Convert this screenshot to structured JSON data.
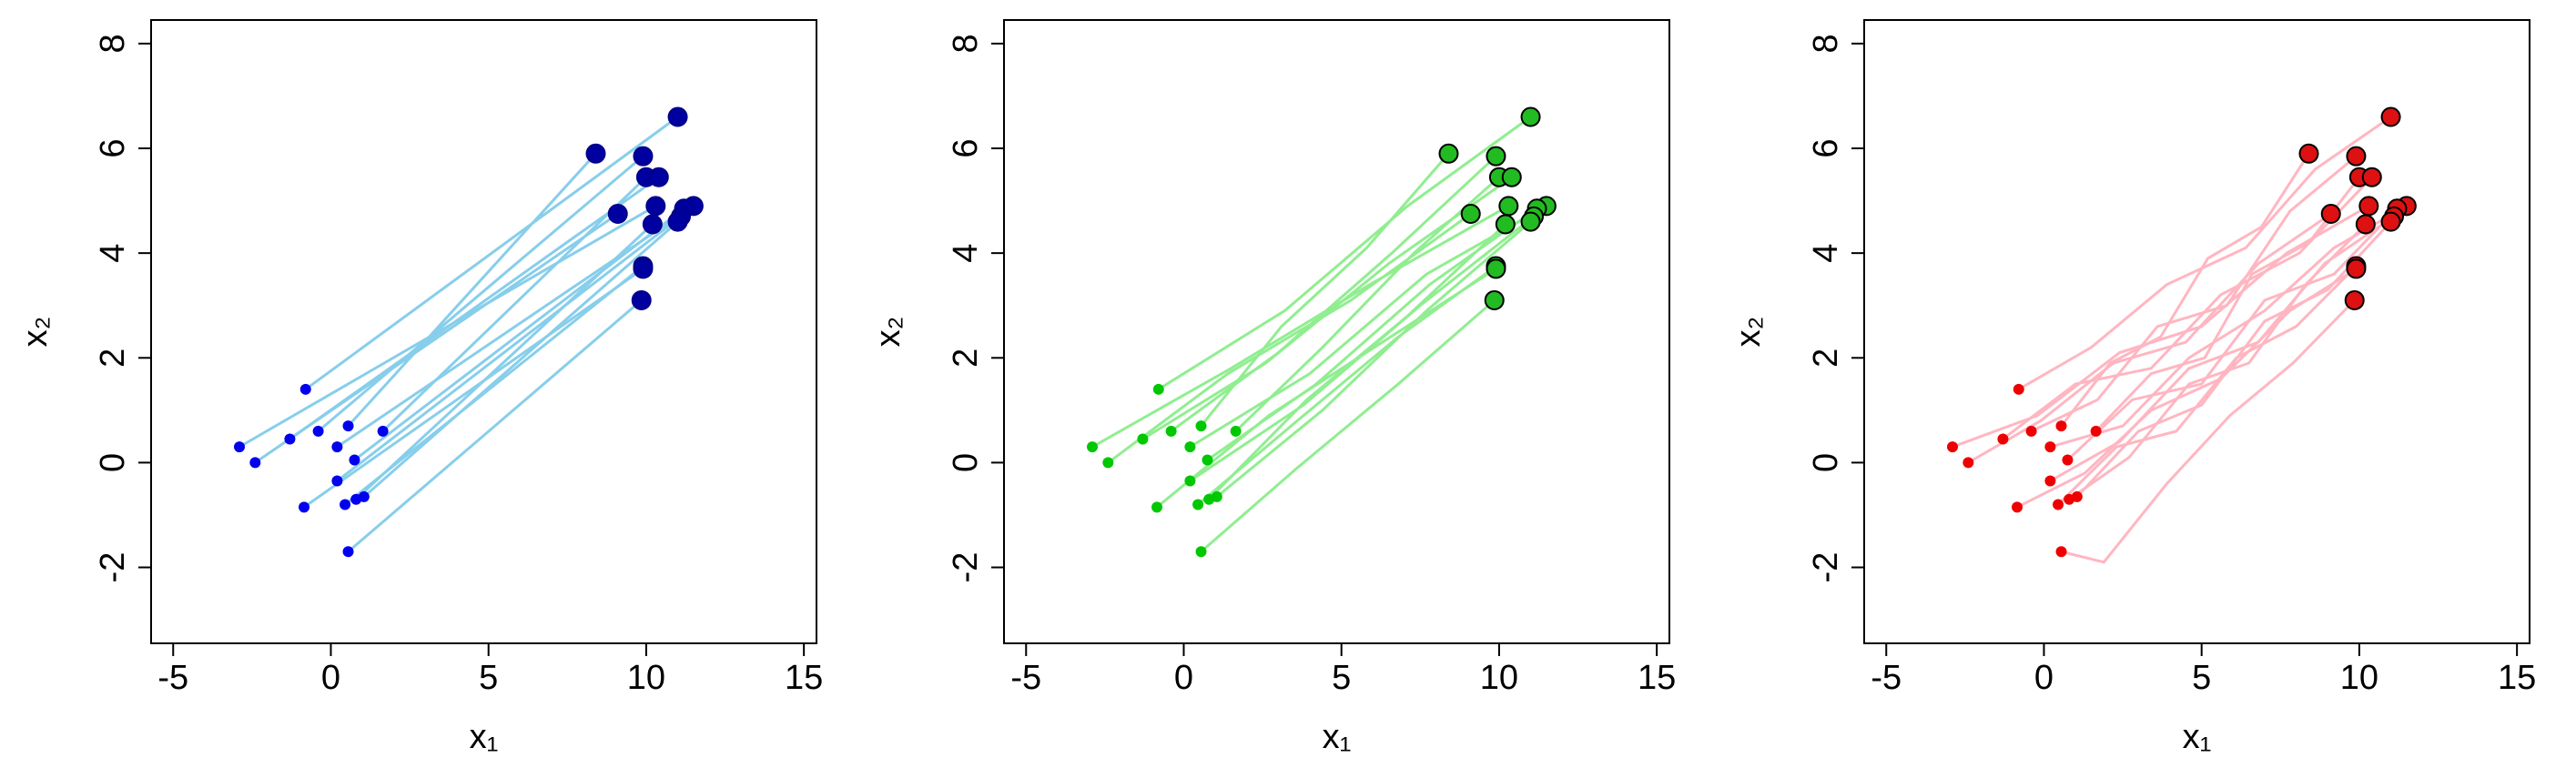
{
  "chart_data": [
    {
      "type": "trajectory",
      "xlabel": "x₁",
      "ylabel": "x₂",
      "xlim": [
        -5.7,
        15.4
      ],
      "ylim": [
        -3.45,
        8.45
      ],
      "xticks": [
        -5,
        0,
        5,
        10,
        15
      ],
      "yticks": [
        -2,
        0,
        2,
        4,
        6,
        8
      ],
      "line_color": "#87ceeb",
      "start_color": "#0000ee",
      "end_color": "#0000a0",
      "end_stroke": "#00008b",
      "paths": [
        {
          "x": [
            -0.8,
            11.0
          ],
          "y": [
            1.4,
            6.6
          ]
        },
        {
          "x": [
            0.55,
            8.4
          ],
          "y": [
            0.7,
            5.9
          ]
        },
        {
          "x": [
            -0.4,
            9.9
          ],
          "y": [
            0.6,
            5.85
          ]
        },
        {
          "x": [
            1.65,
            10.0
          ],
          "y": [
            0.6,
            5.45
          ]
        },
        {
          "x": [
            -1.3,
            10.4
          ],
          "y": [
            0.45,
            5.45
          ]
        },
        {
          "x": [
            -2.9,
            10.3
          ],
          "y": [
            0.3,
            4.9
          ]
        },
        {
          "x": [
            0.2,
            11.5
          ],
          "y": [
            0.3,
            4.9
          ]
        },
        {
          "x": [
            0.75,
            11.2
          ],
          "y": [
            0.05,
            4.85
          ]
        },
        {
          "x": [
            -2.4,
            9.1
          ],
          "y": [
            0.0,
            4.75
          ]
        },
        {
          "x": [
            0.2,
            11.1
          ],
          "y": [
            -0.35,
            4.7
          ]
        },
        {
          "x": [
            1.05,
            11.0
          ],
          "y": [
            -0.65,
            4.6
          ]
        },
        {
          "x": [
            0.8,
            10.2
          ],
          "y": [
            -0.7,
            4.55
          ]
        },
        {
          "x": [
            0.45,
            9.9
          ],
          "y": [
            -0.8,
            3.75
          ]
        },
        {
          "x": [
            -0.85,
            9.9
          ],
          "y": [
            -0.85,
            3.7
          ]
        },
        {
          "x": [
            0.55,
            9.85
          ],
          "y": [
            -1.7,
            3.1
          ]
        }
      ]
    },
    {
      "type": "trajectory",
      "xlabel": "x₁",
      "ylabel": "x₂",
      "xlim": [
        -5.7,
        15.4
      ],
      "ylim": [
        -3.45,
        8.45
      ],
      "xticks": [
        -5,
        0,
        5,
        10,
        15
      ],
      "yticks": [
        -2,
        0,
        2,
        4,
        6,
        8
      ],
      "line_color": "#90ee90",
      "start_color": "#00c800",
      "end_color": "#22bb22",
      "end_stroke": "#000000",
      "paths": [
        {
          "x": [
            -0.8,
            3.2,
            7.1,
            11.0
          ],
          "y": [
            1.4,
            2.9,
            4.9,
            6.6
          ]
        },
        {
          "x": [
            0.55,
            3.1,
            5.8,
            8.4
          ],
          "y": [
            0.7,
            2.6,
            4.1,
            5.9
          ]
        },
        {
          "x": [
            -0.4,
            3.0,
            6.6,
            9.9
          ],
          "y": [
            0.6,
            2.1,
            4.0,
            5.85
          ]
        },
        {
          "x": [
            1.65,
            4.4,
            7.3,
            10.0
          ],
          "y": [
            0.6,
            2.2,
            4.0,
            5.45
          ]
        },
        {
          "x": [
            -1.3,
            2.6,
            6.5,
            10.4
          ],
          "y": [
            0.45,
            1.9,
            3.8,
            5.45
          ]
        },
        {
          "x": [
            -2.9,
            1.5,
            5.9,
            10.3
          ],
          "y": [
            0.3,
            1.8,
            3.4,
            4.9
          ]
        },
        {
          "x": [
            0.2,
            4.0,
            7.7,
            11.5
          ],
          "y": [
            0.3,
            1.7,
            3.6,
            4.9
          ]
        },
        {
          "x": [
            0.75,
            4.2,
            7.8,
            11.2
          ],
          "y": [
            0.05,
            1.5,
            3.4,
            4.85
          ]
        },
        {
          "x": [
            -2.4,
            1.4,
            5.3,
            9.1
          ],
          "y": [
            0.0,
            1.7,
            3.1,
            4.75
          ]
        },
        {
          "x": [
            0.2,
            3.8,
            7.5,
            11.1
          ],
          "y": [
            -0.35,
            1.1,
            3.0,
            4.7
          ]
        },
        {
          "x": [
            1.05,
            4.4,
            7.7,
            11.0
          ],
          "y": [
            -0.65,
            1.0,
            2.9,
            4.6
          ]
        },
        {
          "x": [
            0.8,
            3.9,
            7.1,
            10.2
          ],
          "y": [
            -0.7,
            1.2,
            2.8,
            4.55
          ]
        },
        {
          "x": [
            0.45,
            3.6,
            6.8,
            9.9
          ],
          "y": [
            -0.8,
            0.8,
            2.4,
            3.75
          ]
        },
        {
          "x": [
            -0.85,
            2.7,
            6.3,
            9.9
          ],
          "y": [
            -0.85,
            0.9,
            2.3,
            3.7
          ]
        },
        {
          "x": [
            0.55,
            3.6,
            6.8,
            9.85
          ],
          "y": [
            -1.7,
            -0.1,
            1.5,
            3.1
          ]
        }
      ]
    },
    {
      "type": "trajectory",
      "xlabel": "x₁",
      "ylabel": "x₂",
      "xlim": [
        -5.7,
        15.4
      ],
      "ylim": [
        -3.45,
        8.45
      ],
      "xticks": [
        -5,
        0,
        5,
        10,
        15
      ],
      "yticks": [
        -2,
        0,
        2,
        4,
        6,
        8
      ],
      "line_color": "#ffb6c1",
      "start_color": "#ee0000",
      "end_color": "#dd1111",
      "end_stroke": "#000000",
      "paths": [
        {
          "x": [
            -0.8,
            1.5,
            3.9,
            6.4,
            8.6,
            11.0
          ],
          "y": [
            1.4,
            2.2,
            3.4,
            4.1,
            5.6,
            6.6
          ]
        },
        {
          "x": [
            0.55,
            2.1,
            3.7,
            5.2,
            6.9,
            8.4
          ],
          "y": [
            0.7,
            1.9,
            2.4,
            3.9,
            4.5,
            5.9
          ]
        },
        {
          "x": [
            -0.4,
            1.7,
            3.6,
            5.8,
            7.8,
            9.9
          ],
          "y": [
            0.6,
            1.2,
            2.6,
            3.0,
            4.8,
            5.85
          ]
        },
        {
          "x": [
            1.65,
            3.4,
            5.1,
            6.6,
            8.4,
            10.0
          ],
          "y": [
            0.6,
            1.7,
            2.0,
            3.6,
            4.2,
            5.45
          ]
        },
        {
          "x": [
            -1.3,
            1.0,
            3.4,
            5.6,
            8.1,
            10.4
          ],
          "y": [
            0.45,
            1.5,
            1.8,
            3.2,
            4.0,
            5.45
          ]
        },
        {
          "x": [
            -2.9,
            -0.2,
            2.4,
            5.0,
            7.7,
            10.3
          ],
          "y": [
            0.3,
            0.9,
            2.1,
            2.6,
            4.0,
            4.9
          ]
        },
        {
          "x": [
            0.2,
            2.5,
            4.6,
            7.0,
            9.2,
            11.5
          ],
          "y": [
            0.3,
            0.7,
            2.0,
            2.9,
            4.1,
            4.9
          ]
        },
        {
          "x": [
            0.75,
            2.8,
            5.0,
            7.0,
            9.2,
            11.2
          ],
          "y": [
            0.05,
            1.2,
            1.5,
            3.1,
            3.6,
            4.85
          ]
        },
        {
          "x": [
            -2.4,
            -0.1,
            2.2,
            4.5,
            6.8,
            9.1
          ],
          "y": [
            0.0,
            0.8,
            1.9,
            2.3,
            3.8,
            4.75
          ]
        },
        {
          "x": [
            0.2,
            2.4,
            4.6,
            6.8,
            8.9,
            11.1
          ],
          "y": [
            -0.35,
            0.4,
            1.8,
            2.3,
            3.8,
            4.7
          ]
        },
        {
          "x": [
            1.05,
            3.0,
            5.0,
            7.0,
            9.0,
            11.0
          ],
          "y": [
            -0.65,
            0.6,
            1.1,
            2.7,
            3.3,
            4.6
          ]
        },
        {
          "x": [
            0.8,
            2.7,
            4.6,
            6.5,
            8.3,
            10.2
          ],
          "y": [
            -0.7,
            0.1,
            1.5,
            1.9,
            3.4,
            4.55
          ]
        },
        {
          "x": [
            0.45,
            2.3,
            4.2,
            6.1,
            8.0,
            9.9
          ],
          "y": [
            -0.8,
            0.3,
            0.6,
            2.0,
            2.6,
            3.75
          ]
        },
        {
          "x": [
            -0.85,
            1.3,
            3.4,
            5.6,
            7.8,
            9.9
          ],
          "y": [
            -0.85,
            -0.2,
            1.0,
            1.6,
            2.9,
            3.7
          ]
        },
        {
          "x": [
            0.55,
            1.9,
            3.9,
            5.9,
            7.9,
            9.85
          ],
          "y": [
            -1.7,
            -1.9,
            -0.4,
            0.9,
            1.9,
            3.1
          ]
        }
      ]
    }
  ]
}
